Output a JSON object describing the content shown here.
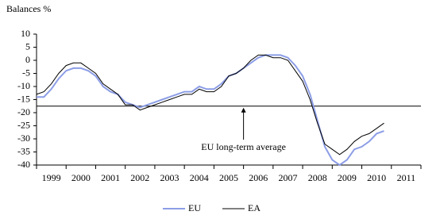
{
  "chart_data": {
    "type": "line",
    "y_label": "Balances %",
    "x": [
      1999.0,
      1999.25,
      1999.5,
      1999.75,
      2000.0,
      2000.25,
      2000.5,
      2000.75,
      2001.0,
      2001.25,
      2001.5,
      2001.75,
      2002.0,
      2002.25,
      2002.5,
      2002.75,
      2003.0,
      2003.25,
      2003.5,
      2003.75,
      2004.0,
      2004.25,
      2004.5,
      2004.75,
      2005.0,
      2005.25,
      2005.5,
      2005.75,
      2006.0,
      2006.25,
      2006.5,
      2006.75,
      2007.0,
      2007.25,
      2007.5,
      2007.75,
      2008.0,
      2008.25,
      2008.5,
      2008.75,
      2009.0,
      2009.25,
      2009.5,
      2009.75,
      2010.0,
      2010.25,
      2010.5,
      2010.75
    ],
    "series": [
      {
        "name": "EU",
        "color": "#8c9de6",
        "values": [
          -14,
          -14,
          -11,
          -7,
          -4,
          -3,
          -3,
          -4,
          -6,
          -10,
          -12,
          -13,
          -16,
          -17,
          -18,
          -17,
          -16,
          -15,
          -14,
          -13,
          -12,
          -12,
          -10,
          -11,
          -11,
          -9,
          -6,
          -5,
          -3,
          -1,
          1,
          2,
          2,
          2,
          1,
          -2,
          -6,
          -13,
          -23,
          -33,
          -38,
          -40,
          -38,
          -34,
          -33,
          -31,
          -28,
          -27
        ]
      },
      {
        "name": "EA",
        "color": "#000000",
        "values": [
          -13,
          -12,
          -9,
          -5,
          -2,
          -1,
          -1,
          -3,
          -5,
          -9,
          -11,
          -13,
          -17,
          -17,
          -19,
          -18,
          -17,
          -16,
          -15,
          -14,
          -13,
          -13,
          -11,
          -12,
          -12,
          -10,
          -6,
          -5,
          -3,
          0,
          2,
          2,
          1,
          1,
          0,
          -4,
          -8,
          -15,
          -24,
          -32,
          -34,
          -36,
          -34,
          -31,
          -29,
          -28,
          -26,
          -24
        ]
      }
    ],
    "xlim": [
      1999,
      2012
    ],
    "xticks": [
      1999,
      2000,
      2001,
      2002,
      2003,
      2004,
      2005,
      2006,
      2007,
      2008,
      2009,
      2010,
      2011
    ],
    "ylim": [
      -40,
      10
    ],
    "yticks": [
      -40,
      -35,
      -30,
      -25,
      -20,
      -15,
      -10,
      -5,
      0,
      5,
      10
    ],
    "average": -17.5,
    "annotation": "EU long-term average",
    "annotation_x": 2006
  }
}
